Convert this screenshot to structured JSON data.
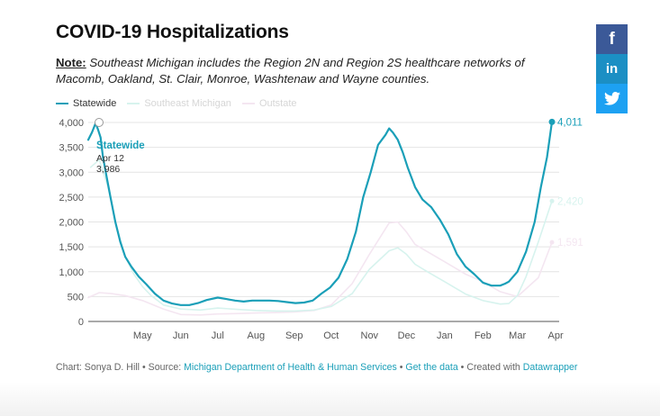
{
  "header": {
    "title": "COVID-19 Hospitalizations",
    "note_label": "Note:",
    "note_text": "Southeast Michigan includes the Region 2N and Region 2S healthcare networks of Macomb, Oakland, St. Clair, Monroe, Washtenaw and Wayne counties."
  },
  "legend": [
    {
      "label": "Statewide",
      "color": "#1a9fb8"
    },
    {
      "label": "Southeast Michigan",
      "color": "#d7f3ee"
    },
    {
      "label": "Outstate",
      "color": "#f4e6f1"
    }
  ],
  "tooltip": {
    "series": "Statewide",
    "date": "Apr 12",
    "value": "3,986"
  },
  "end_labels": {
    "statewide": "4,011",
    "southeast": "2,420",
    "outstate": "1,591"
  },
  "footer": {
    "credit": "Chart: Sonya D. Hill",
    "source_label": "Source:",
    "source_link": "Michigan Department of Health & Human Services",
    "get_data": "Get the data",
    "created_with": "Created with",
    "tool": "Datawrapper"
  },
  "share": {
    "facebook": "f",
    "linkedin": "in"
  },
  "chart_data": {
    "type": "line",
    "title": "COVID-19 Hospitalizations",
    "y_ticks": [
      "4,000",
      "3,500",
      "3,000",
      "2,500",
      "2,000",
      "1,500",
      "1,000",
      "500",
      "0"
    ],
    "x_ticks": [
      "May",
      "Jun",
      "Jul",
      "Aug",
      "Sep",
      "Oct",
      "Nov",
      "Dec",
      "Jan",
      "Feb",
      "Mar",
      "Apr"
    ],
    "ylim": [
      0,
      4000
    ],
    "xlim": [
      "2020-04-01",
      "2021-04-12"
    ],
    "grid": true,
    "series": [
      {
        "name": "Statewide",
        "color": "#1a9fb8",
        "x": [
          "2020-04-01",
          "2020-04-04",
          "2020-04-07",
          "2020-04-09",
          "2020-04-11",
          "2020-04-13",
          "2020-04-16",
          "2020-04-19",
          "2020-04-23",
          "2020-04-27",
          "2020-05-01",
          "2020-05-06",
          "2020-05-12",
          "2020-05-18",
          "2020-05-25",
          "2020-06-01",
          "2020-06-08",
          "2020-06-15",
          "2020-06-22",
          "2020-06-29",
          "2020-07-06",
          "2020-07-15",
          "2020-07-22",
          "2020-07-29",
          "2020-08-05",
          "2020-08-12",
          "2020-08-19",
          "2020-08-26",
          "2020-09-02",
          "2020-09-09",
          "2020-09-16",
          "2020-09-23",
          "2020-09-30",
          "2020-10-07",
          "2020-10-14",
          "2020-10-21",
          "2020-10-28",
          "2020-11-04",
          "2020-11-10",
          "2020-11-16",
          "2020-11-22",
          "2020-11-28",
          "2020-12-01",
          "2020-12-04",
          "2020-12-08",
          "2020-12-12",
          "2020-12-16",
          "2020-12-22",
          "2020-12-28",
          "2021-01-04",
          "2021-01-11",
          "2021-01-18",
          "2021-01-25",
          "2021-02-01",
          "2021-02-08",
          "2021-02-15",
          "2021-02-22",
          "2021-03-01",
          "2021-03-05",
          "2021-03-08",
          "2021-03-15",
          "2021-03-22",
          "2021-03-29",
          "2021-04-03",
          "2021-04-08",
          "2021-04-12"
        ],
        "values": [
          3650,
          3800,
          3986,
          3850,
          3700,
          3300,
          2900,
          2500,
          2000,
          1600,
          1300,
          1100,
          900,
          750,
          560,
          420,
          360,
          330,
          330,
          370,
          430,
          480,
          450,
          420,
          400,
          420,
          420,
          420,
          410,
          390,
          370,
          380,
          420,
          560,
          680,
          880,
          1250,
          1800,
          2500,
          3000,
          3550,
          3750,
          3880,
          3800,
          3650,
          3400,
          3100,
          2700,
          2450,
          2300,
          2050,
          1750,
          1350,
          1100,
          950,
          780,
          720,
          720,
          760,
          800,
          1000,
          1400,
          2000,
          2700,
          3300,
          4011
        ]
      },
      {
        "name": "Southeast Michigan",
        "color": "#d7f3ee",
        "x": [
          "2020-04-03",
          "2020-04-10",
          "2020-04-17",
          "2020-04-24",
          "2020-05-01",
          "2020-05-08",
          "2020-05-15",
          "2020-05-22",
          "2020-06-01",
          "2020-06-15",
          "2020-07-01",
          "2020-07-15",
          "2020-08-01",
          "2020-08-15",
          "2020-09-01",
          "2020-09-15",
          "2020-10-01",
          "2020-10-15",
          "2020-11-01",
          "2020-11-15",
          "2020-12-01",
          "2020-12-08",
          "2020-12-15",
          "2020-12-22",
          "2021-01-01",
          "2021-01-15",
          "2021-02-01",
          "2021-02-15",
          "2021-03-01",
          "2021-03-08",
          "2021-03-15",
          "2021-03-22",
          "2021-04-01",
          "2021-04-12"
        ],
        "values": [
          3100,
          3250,
          2700,
          1900,
          1300,
          950,
          700,
          520,
          330,
          250,
          230,
          270,
          240,
          220,
          210,
          210,
          230,
          300,
          560,
          1050,
          1420,
          1480,
          1350,
          1150,
          1000,
          800,
          550,
          420,
          350,
          360,
          520,
          900,
          1600,
          2420
        ]
      },
      {
        "name": "Outstate",
        "color": "#f4e6f1",
        "x": [
          "2020-04-01",
          "2020-04-10",
          "2020-04-20",
          "2020-05-01",
          "2020-05-15",
          "2020-06-01",
          "2020-06-15",
          "2020-07-01",
          "2020-07-15",
          "2020-08-01",
          "2020-08-15",
          "2020-09-01",
          "2020-09-15",
          "2020-10-01",
          "2020-10-15",
          "2020-11-01",
          "2020-11-15",
          "2020-12-01",
          "2020-12-08",
          "2020-12-15",
          "2020-12-22",
          "2021-01-01",
          "2021-01-15",
          "2021-02-01",
          "2021-02-15",
          "2021-03-01",
          "2021-03-15",
          "2021-04-01",
          "2021-04-12"
        ],
        "values": [
          480,
          580,
          560,
          520,
          420,
          250,
          140,
          130,
          150,
          160,
          170,
          180,
          190,
          220,
          330,
          760,
          1350,
          1980,
          2000,
          1800,
          1550,
          1400,
          1200,
          950,
          800,
          600,
          500,
          880,
          1591
        ]
      }
    ]
  }
}
